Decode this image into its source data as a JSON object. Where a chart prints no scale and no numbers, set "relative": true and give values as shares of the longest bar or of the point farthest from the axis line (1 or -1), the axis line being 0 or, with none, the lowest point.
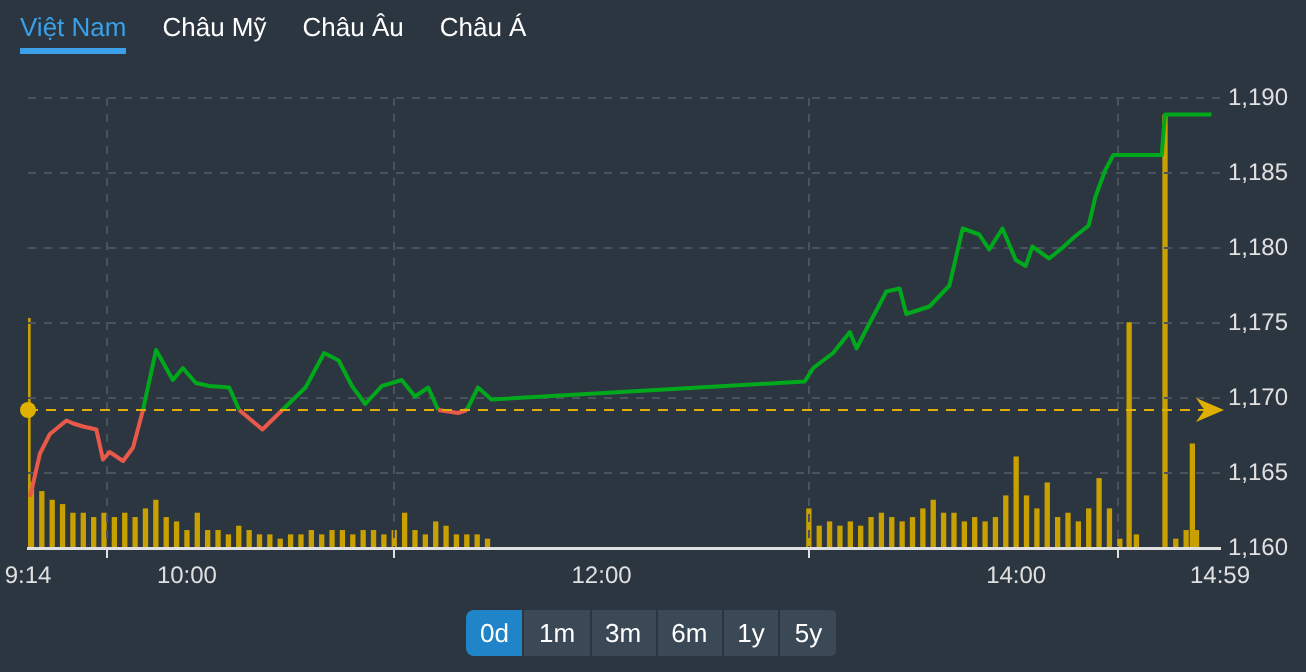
{
  "chart_data": [
    {
      "type": "other",
      "annotations": [
        "Việt Nam",
        "Châu Mỹ",
        "Châu Âu",
        "Châu Á"
      ]
    },
    {
      "type": "line",
      "xlim": [
        9.2333,
        14.9833
      ],
      "ylim": [
        1160,
        1190
      ],
      "xticks": [
        {
          "value": 9.2333,
          "label": "9:14"
        },
        {
          "value": 10,
          "label": "10:00"
        },
        {
          "value": 12,
          "label": "12:00"
        },
        {
          "value": 14,
          "label": "14:00"
        },
        {
          "value": 14.9833,
          "label": "14:59"
        }
      ],
      "yticks": [
        {
          "value": 1160,
          "label": "1,160"
        },
        {
          "value": 1165,
          "label": "1,165"
        },
        {
          "value": 1170,
          "label": "1,170"
        },
        {
          "value": 1175,
          "label": "1,175"
        },
        {
          "value": 1180,
          "label": "1,180"
        },
        {
          "value": 1185,
          "label": "1,185"
        },
        {
          "value": 1190,
          "label": "1,190"
        }
      ],
      "grid": true,
      "legend": false,
      "line_style": "solid",
      "marker": "none",
      "ref_lines": [
        {
          "axis": "y",
          "value": 1169.2,
          "color": "#e0b000",
          "line_style": "dashed"
        }
      ],
      "x": [
        9.243,
        9.291,
        9.339,
        9.419,
        9.451,
        9.499,
        9.563,
        9.595,
        9.627,
        9.692,
        9.74,
        9.788,
        9.851,
        9.932,
        9.98,
        10.043,
        10.108,
        10.204,
        10.252,
        10.364,
        10.46,
        10.572,
        10.662,
        10.732,
        10.796,
        10.86,
        10.94,
        11.036,
        11.1,
        11.164,
        11.212,
        11.308,
        11.35,
        11.404,
        11.469,
        12.98,
        13.021,
        13.117,
        13.198,
        13.23,
        13.278,
        13.374,
        13.438,
        13.47,
        13.582,
        13.678,
        13.742,
        13.822,
        13.87,
        13.934,
        13.998,
        14.046,
        14.078,
        14.159,
        14.222,
        14.286,
        14.35,
        14.382,
        14.43,
        14.469,
        14.702,
        14.718,
        14.942
      ],
      "series": [
        {
          "type": "line",
          "color": "#e8594a",
          "values": [
            1163.4,
            1166.3,
            1167.6,
            1168.5,
            1168.3,
            1168.1,
            1167.9,
            1165.9,
            1166.4,
            1165.8,
            1166.7,
            1169.2,
            null,
            null,
            null,
            null,
            null,
            null,
            1169.2,
            1167.9,
            1169.2,
            null,
            null,
            null,
            null,
            null,
            null,
            null,
            null,
            null,
            1169.2,
            1169.0,
            1169.2,
            null,
            null,
            null,
            null,
            null,
            null,
            null,
            null,
            null,
            null,
            null,
            null,
            null,
            null,
            null,
            null,
            null,
            null,
            null,
            null,
            null,
            null,
            null,
            null,
            null,
            null,
            null,
            null,
            null,
            null
          ]
        },
        {
          "type": "line",
          "color": "#00a81c",
          "values": [
            null,
            null,
            null,
            null,
            null,
            null,
            null,
            null,
            null,
            null,
            null,
            1169.2,
            1173.2,
            1171.2,
            1172.0,
            1171.0,
            1170.8,
            1170.7,
            1169.2,
            null,
            1169.2,
            1170.7,
            1173.0,
            1172.5,
            1170.8,
            1169.6,
            1170.8,
            1171.2,
            1170.1,
            1170.7,
            1169.2,
            null,
            1169.2,
            1170.7,
            1169.9,
            1171.1,
            1172.0,
            1173.0,
            1174.4,
            1173.3,
            1174.6,
            1177.1,
            1177.3,
            1175.6,
            1176.1,
            1177.5,
            1181.3,
            1180.9,
            1179.9,
            1181.3,
            1179.2,
            1178.8,
            1180.1,
            1179.3,
            1180.0,
            1180.8,
            1181.5,
            1183.4,
            1185.2,
            1186.2,
            1186.2,
            1188.9,
            1188.9
          ]
        }
      ]
    },
    {
      "type": "bar",
      "relative": true,
      "xlim": [
        9.2333,
        14.9833
      ],
      "legend": false,
      "series": [
        {
          "type": "bar",
          "color": "#c8a000",
          "x": [
            9.2333,
            9.25,
            9.3,
            9.35,
            9.4,
            9.45,
            9.5,
            9.55,
            9.6,
            9.65,
            9.7,
            9.75,
            9.8,
            9.85,
            9.9,
            9.95,
            10,
            10.05,
            10.1,
            10.15,
            10.2,
            10.25,
            10.3,
            10.35,
            10.4,
            10.45,
            10.5,
            10.55,
            10.6,
            10.65,
            10.7,
            10.75,
            10.8,
            10.85,
            10.9,
            10.95,
            11,
            11.05,
            11.1,
            11.15,
            11.2,
            11.25,
            11.3,
            11.35,
            11.4,
            11.45,
            13,
            13.05,
            13.1,
            13.15,
            13.2,
            13.25,
            13.3,
            13.35,
            13.4,
            13.45,
            13.5,
            13.55,
            13.6,
            13.65,
            13.7,
            13.75,
            13.8,
            13.85,
            13.9,
            13.95,
            14,
            14.05,
            14.1,
            14.15,
            14.2,
            14.25,
            14.3,
            14.35,
            14.4,
            14.45,
            14.5,
            14.545,
            14.58,
            14.718,
            14.77,
            14.82,
            14.85,
            14.87
          ],
          "values": [
            0.53,
            0.15,
            0.13,
            0.11,
            0.1,
            0.08,
            0.08,
            0.07,
            0.08,
            0.07,
            0.08,
            0.07,
            0.09,
            0.11,
            0.07,
            0.06,
            0.04,
            0.08,
            0.04,
            0.04,
            0.03,
            0.05,
            0.04,
            0.03,
            0.03,
            0.02,
            0.03,
            0.03,
            0.04,
            0.03,
            0.04,
            0.04,
            0.03,
            0.04,
            0.04,
            0.03,
            0.04,
            0.08,
            0.04,
            0.03,
            0.06,
            0.05,
            0.03,
            0.03,
            0.03,
            0.02,
            0.09,
            0.05,
            0.06,
            0.05,
            0.06,
            0.05,
            0.07,
            0.08,
            0.07,
            0.06,
            0.07,
            0.09,
            0.11,
            0.08,
            0.08,
            0.06,
            0.07,
            0.06,
            0.07,
            0.12,
            0.21,
            0.12,
            0.09,
            0.15,
            0.07,
            0.08,
            0.06,
            0.09,
            0.16,
            0.09,
            0.02,
            0.52,
            0.03,
            1,
            0.02,
            0.04,
            0.24,
            0.04
          ]
        }
      ]
    },
    {
      "type": "other",
      "annotations": [
        "0d",
        "1m",
        "3m",
        "6m",
        "1y",
        "5y"
      ]
    }
  ]
}
